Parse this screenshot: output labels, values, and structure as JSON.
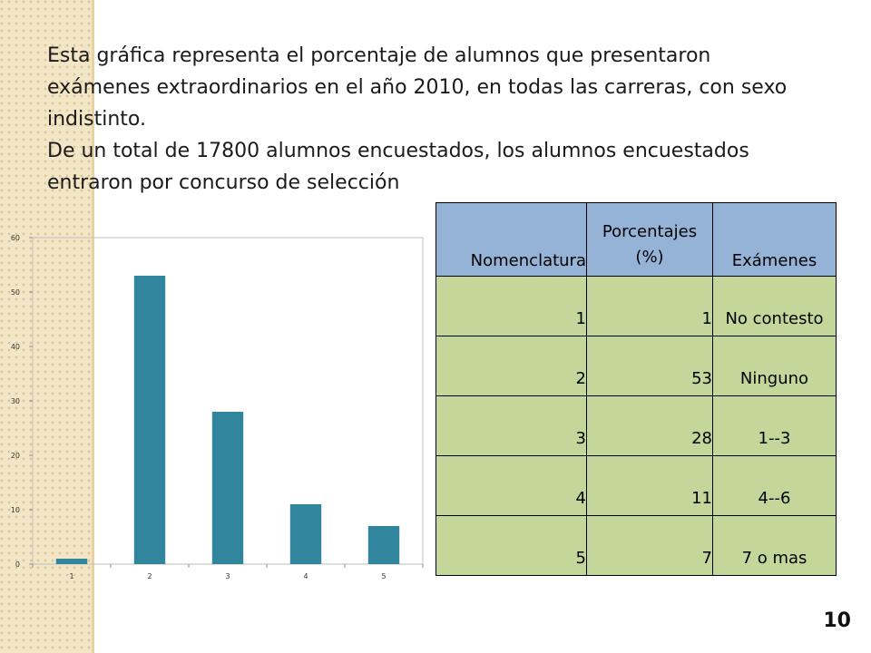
{
  "heading": {
    "paragraph1": "Esta gráfica representa el porcentaje de alumnos que presentaron exámenes extraordinarios en el año 2010, en todas las carreras, con sexo indistinto.",
    "paragraph2": "De un total de 17800 alumnos encuestados, los alumnos encuestados entraron por concurso de selección"
  },
  "chart_data": {
    "type": "bar",
    "categories": [
      "1",
      "2",
      "3",
      "4",
      "5"
    ],
    "values": [
      1,
      53,
      28,
      11,
      7
    ],
    "ylim": [
      0,
      60
    ],
    "yticks": [
      0,
      10,
      20,
      30,
      40,
      50,
      60
    ],
    "grid": false,
    "bar_color": "#31859c",
    "title": "",
    "xlabel": "",
    "ylabel": ""
  },
  "table": {
    "headers": [
      "Nomenclatura",
      "Porcentajes (%)",
      "Exámenes"
    ],
    "rows": [
      {
        "nomenclatura": "1",
        "porcentaje": "1",
        "examenes": "No contesto"
      },
      {
        "nomenclatura": "2",
        "porcentaje": "53",
        "examenes": "Ninguno"
      },
      {
        "nomenclatura": "3",
        "porcentaje": "28",
        "examenes": "1--3"
      },
      {
        "nomenclatura": "4",
        "porcentaje": "11",
        "examenes": "4--6"
      },
      {
        "nomenclatura": "5",
        "porcentaje": "7",
        "examenes": "7 o mas"
      }
    ],
    "header_color": "#95b3d7",
    "row_color": "#c4d79b"
  },
  "slide_number": "10",
  "colors": {
    "side_band": "#f3e6c6",
    "bar": "#31859c"
  }
}
